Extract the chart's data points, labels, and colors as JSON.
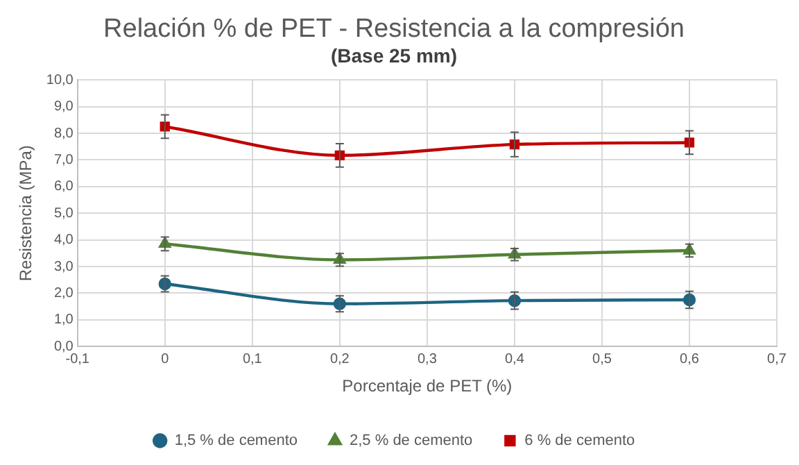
{
  "chart_data": {
    "type": "line",
    "title": "Relación % de PET - Resistencia a la compresión",
    "subtitle": "(Base 25 mm)",
    "xlabel": "Porcentaje de PET (%)",
    "ylabel": "Resistencia (MPa)",
    "x": [
      0,
      0.2,
      0.4,
      0.6
    ],
    "series": [
      {
        "name": "1,5 % de cemento",
        "color": "#1f6482",
        "marker": "circle",
        "values": [
          2.35,
          1.6,
          1.72,
          1.75
        ],
        "errors": [
          0.3,
          0.3,
          0.32,
          0.32
        ]
      },
      {
        "name": "2,5 % de cemento",
        "color": "#538135",
        "marker": "triangle",
        "values": [
          3.85,
          3.25,
          3.45,
          3.6
        ],
        "errors": [
          0.26,
          0.24,
          0.23,
          0.24
        ]
      },
      {
        "name": "6 % de cemento",
        "color": "#c00000",
        "marker": "square",
        "values": [
          8.25,
          7.17,
          7.58,
          7.65
        ],
        "errors": [
          0.44,
          0.44,
          0.46,
          0.44
        ]
      }
    ],
    "xlim": [
      -0.1,
      0.7
    ],
    "xticks": [
      {
        "value": -0.1,
        "label": "-0,1"
      },
      0,
      {
        "value": 0.1,
        "label": "0,1"
      },
      {
        "value": 0.2,
        "label": "0,2"
      },
      {
        "value": 0.3,
        "label": "0,3"
      },
      {
        "value": 0.4,
        "label": "0,4"
      },
      {
        "value": 0.5,
        "label": "0,5"
      },
      {
        "value": 0.6,
        "label": "0,6"
      },
      {
        "value": 0.7,
        "label": "0,7"
      }
    ],
    "ylim": [
      0,
      10
    ],
    "yticks": [
      {
        "value": 0,
        "label": "0,0"
      },
      {
        "value": 1,
        "label": "1,0"
      },
      {
        "value": 2,
        "label": "2,0"
      },
      {
        "value": 3,
        "label": "3,0"
      },
      {
        "value": 4,
        "label": "4,0"
      },
      {
        "value": 5,
        "label": "5,0"
      },
      {
        "value": 6,
        "label": "6,0"
      },
      {
        "value": 7,
        "label": "7,0"
      },
      {
        "value": 8,
        "label": "8,0"
      },
      {
        "value": 9,
        "label": "9,0"
      },
      {
        "value": 10,
        "label": "10,0"
      }
    ],
    "grid": true,
    "legend": "bottom",
    "line_style": "solid"
  }
}
